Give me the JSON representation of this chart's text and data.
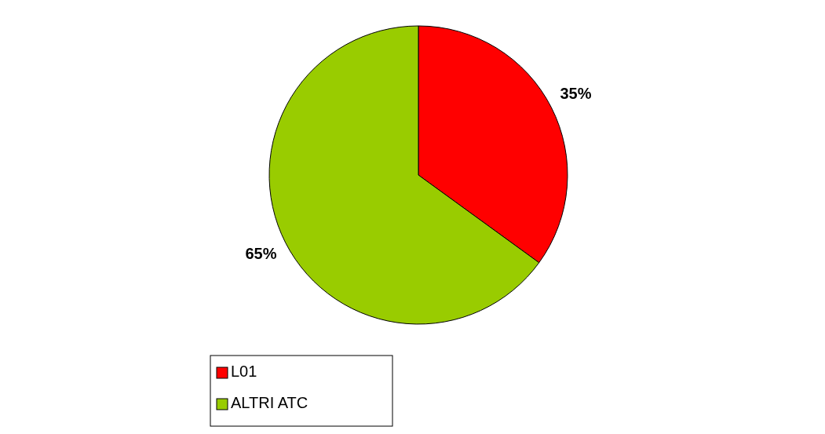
{
  "chart_data": {
    "type": "pie",
    "categories": [
      "L01",
      "ALTRI ATC"
    ],
    "values": [
      35,
      65
    ],
    "colors": [
      "#ff0000",
      "#99cc00"
    ],
    "value_labels": [
      "35%",
      "65%"
    ],
    "legend": "bottom"
  }
}
